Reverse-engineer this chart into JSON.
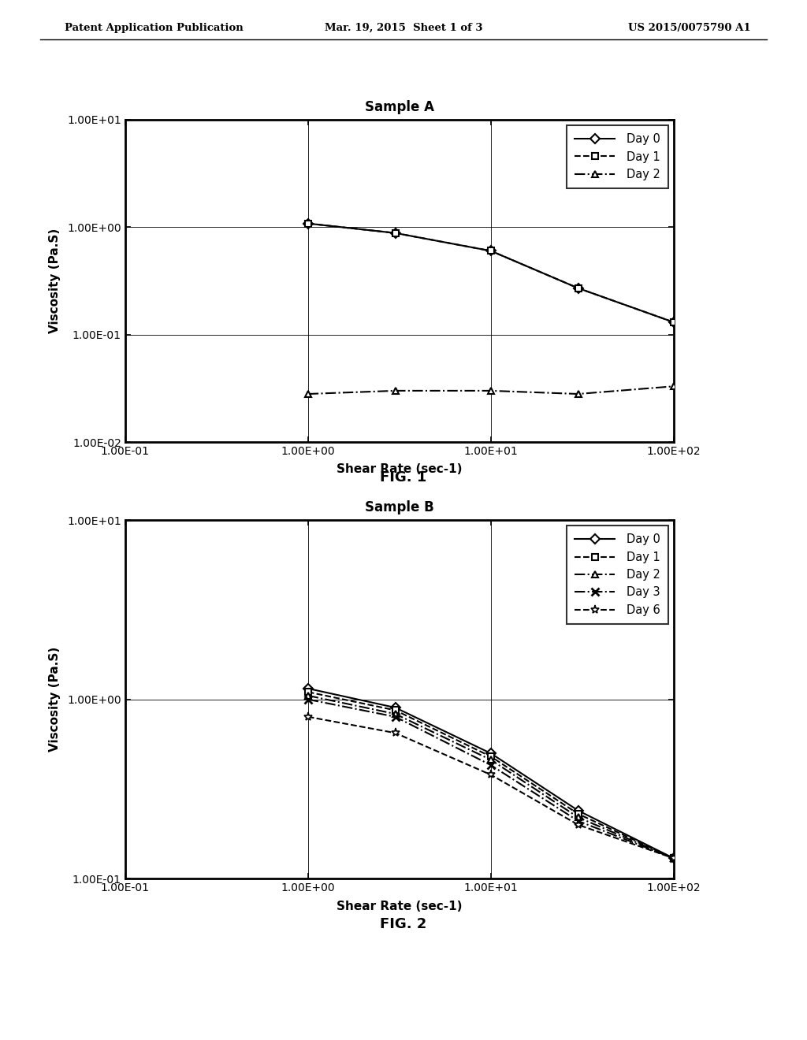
{
  "header_left": "Patent Application Publication",
  "header_mid": "Mar. 19, 2015  Sheet 1 of 3",
  "header_right": "US 2015/0075790 A1",
  "fig1": {
    "title": "Sample A",
    "xlabel": "Shear Rate (sec-1)",
    "ylabel": "Viscosity (Pa.S)",
    "fig_label": "FIG. 1",
    "xlim": [
      0.1,
      100
    ],
    "ylim": [
      0.01,
      10
    ],
    "series": [
      {
        "label": "Day 0",
        "x": [
          1.0,
          3.0,
          10.0,
          30.0,
          100.0
        ],
        "y": [
          1.08,
          0.88,
          0.6,
          0.27,
          0.13
        ],
        "linestyle": "-",
        "marker": "D",
        "markersize": 6,
        "color": "black"
      },
      {
        "label": "Day 1",
        "x": [
          1.0,
          3.0,
          10.0,
          30.0,
          100.0
        ],
        "y": [
          1.08,
          0.88,
          0.6,
          0.27,
          0.13
        ],
        "linestyle": "--",
        "marker": "s",
        "markersize": 6,
        "color": "black"
      },
      {
        "label": "Day 2",
        "x": [
          1.0,
          3.0,
          10.0,
          30.0,
          100.0
        ],
        "y": [
          0.028,
          0.03,
          0.03,
          0.028,
          0.033
        ],
        "linestyle": "-.",
        "marker": "^",
        "markersize": 6,
        "color": "black"
      }
    ]
  },
  "fig2": {
    "title": "Sample B",
    "xlabel": "Shear Rate (sec-1)",
    "ylabel": "Viscosity (Pa.S)",
    "fig_label": "FIG. 2",
    "xlim": [
      0.1,
      100
    ],
    "ylim": [
      0.1,
      10
    ],
    "series": [
      {
        "label": "Day 0",
        "x": [
          1.0,
          3.0,
          10.0,
          30.0,
          100.0
        ],
        "y": [
          1.15,
          0.9,
          0.5,
          0.24,
          0.13
        ],
        "linestyle": "-",
        "marker": "D",
        "markersize": 6,
        "color": "black"
      },
      {
        "label": "Day 1",
        "x": [
          1.0,
          3.0,
          10.0,
          30.0,
          100.0
        ],
        "y": [
          1.1,
          0.87,
          0.48,
          0.23,
          0.13
        ],
        "linestyle": "--",
        "marker": "s",
        "markersize": 6,
        "color": "black"
      },
      {
        "label": "Day 2",
        "x": [
          1.0,
          3.0,
          10.0,
          30.0,
          100.0
        ],
        "y": [
          1.05,
          0.83,
          0.46,
          0.22,
          0.13
        ],
        "linestyle": "-.",
        "marker": "^",
        "markersize": 6,
        "color": "black"
      },
      {
        "label": "Day 3",
        "x": [
          1.0,
          3.0,
          10.0,
          30.0,
          100.0
        ],
        "y": [
          1.0,
          0.8,
          0.43,
          0.21,
          0.13
        ],
        "linestyle": "-.",
        "marker": "x",
        "markersize": 7,
        "color": "black"
      },
      {
        "label": "Day 6",
        "x": [
          1.0,
          3.0,
          10.0,
          30.0,
          100.0
        ],
        "y": [
          0.8,
          0.65,
          0.38,
          0.2,
          0.13
        ],
        "linestyle": "--",
        "marker": "*",
        "markersize": 8,
        "color": "black"
      }
    ]
  },
  "background_color": "#ffffff",
  "text_color": "#000000"
}
